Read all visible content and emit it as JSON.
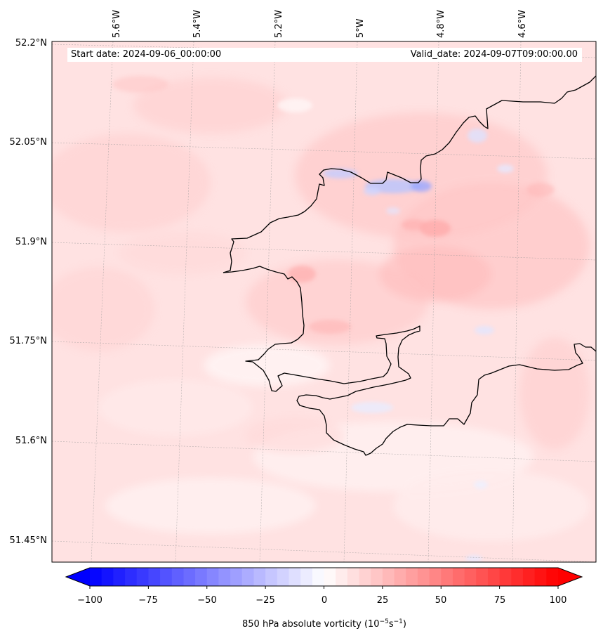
{
  "map": {
    "start_date": "Start date: 2024-09-06_00:00:00",
    "valid_date": "Valid_date: 2024-09-07T09:00:00.00",
    "lon_labels": [
      "5.6°W",
      "5.4°W",
      "5.2°W",
      "5°W",
      "4.8°W",
      "4.6°W"
    ],
    "lat_labels": [
      "52.2°N",
      "52.05°N",
      "51.9°N",
      "51.75°N",
      "51.6°N",
      "51.45°N"
    ],
    "field": "850 hPa absolute vorticity",
    "coastline_color": "#000000",
    "gridlines": true
  },
  "colorbar": {
    "label": "850 hPa absolute vorticity (10",
    "label_exp1": "−5",
    "label_mid": "s",
    "label_exp2": "−1",
    "label_end": ")",
    "ticks": [
      "−100",
      "−75",
      "−50",
      "−25",
      "0",
      "25",
      "50",
      "75",
      "100"
    ],
    "range": [
      -100,
      100
    ],
    "levels": 41,
    "extend": "both",
    "colormap": "bwr",
    "low_color": "#0000ff",
    "mid_color": "#ffffff",
    "high_color": "#ff0000"
  }
}
